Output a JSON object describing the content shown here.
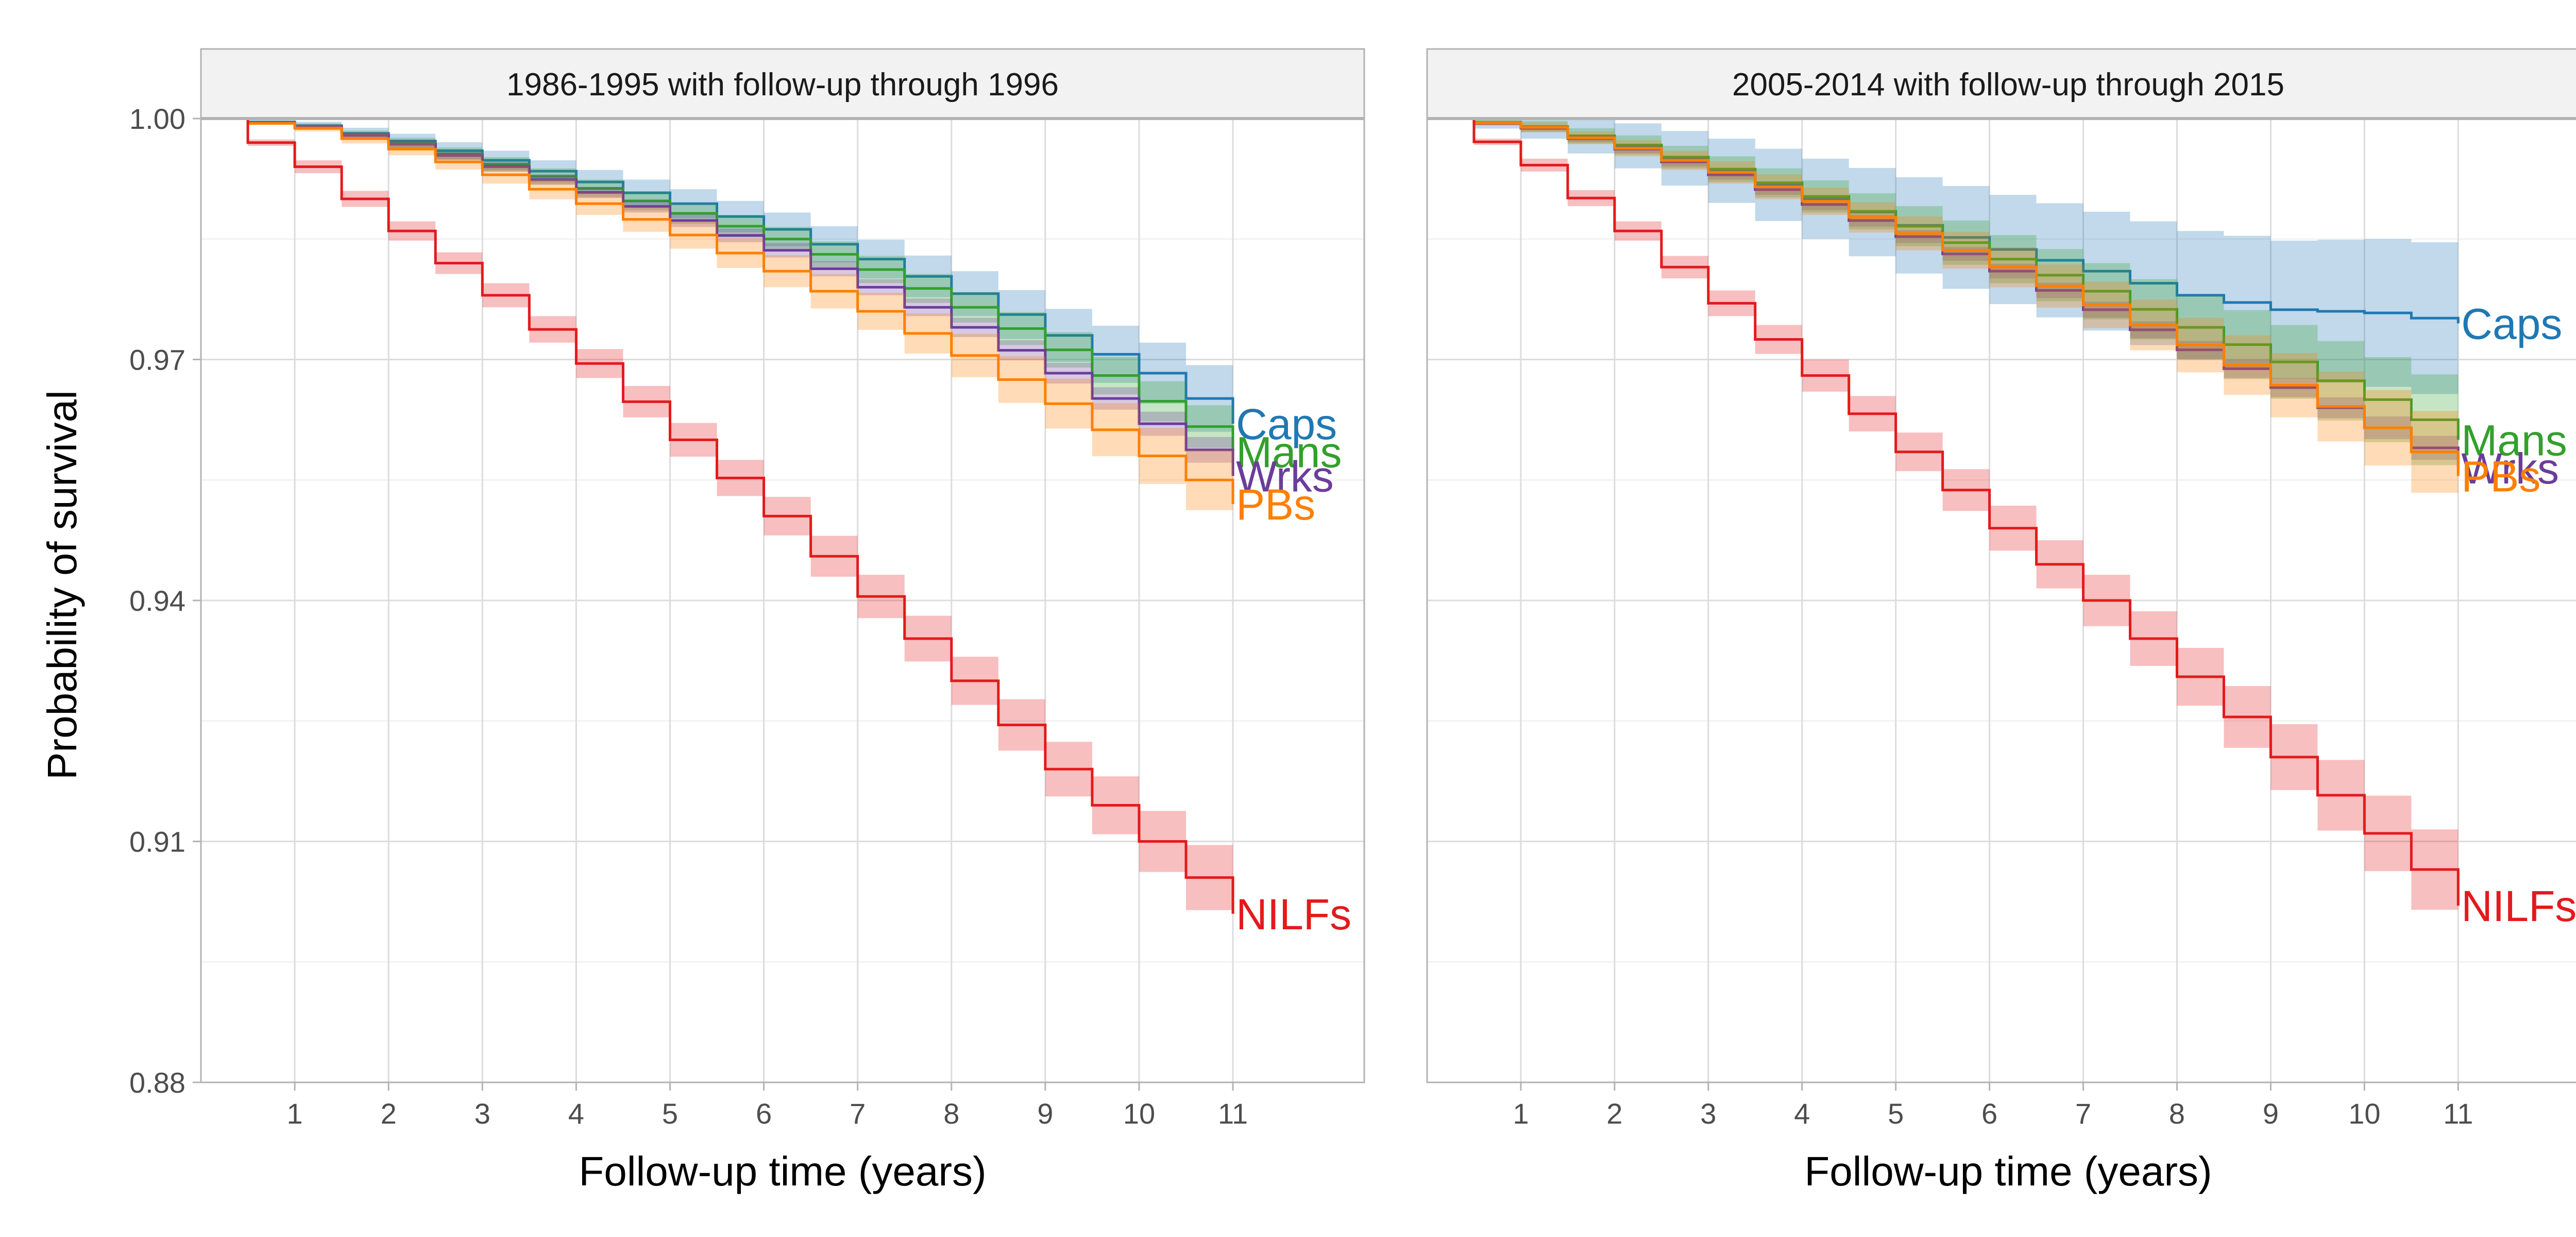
{
  "chart_data": {
    "type": "line",
    "ylabel": "Probability of survival",
    "y_ticks": [
      "0.88",
      "0.91",
      "0.94",
      "0.97",
      "1.00"
    ],
    "y_tick_values": [
      0.88,
      0.91,
      0.94,
      0.97,
      1.0
    ],
    "ylim": [
      0.88,
      1.0
    ],
    "x_ticks": [
      "1",
      "2",
      "3",
      "4",
      "5",
      "6",
      "7",
      "8",
      "9",
      "10",
      "11"
    ],
    "x_tick_values": [
      1,
      2,
      3,
      4,
      5,
      6,
      7,
      8,
      9,
      10,
      11
    ],
    "xlim": [
      0,
      12.4
    ],
    "grid": true,
    "legend": "direct labels at line ends",
    "step": 0.5,
    "panels": [
      {
        "strip_title": "1986-1995 with follow-up through 1996",
        "xlabel": "Follow-up time (years)",
        "series": [
          {
            "name": "Caps",
            "color": "#1f78b4",
            "x": [
              0,
              1,
              2,
              3,
              4,
              5,
              6,
              7,
              8,
              9,
              10,
              11
            ],
            "values": [
              1.0,
              0.9991,
              0.9972,
              0.9948,
              0.9921,
              0.9894,
              0.9862,
              0.9825,
              0.9782,
              0.973,
              0.9683,
              0.962
            ],
            "ci_halfwidth": [
              0,
              0.0005,
              0.0009,
              0.0012,
              0.0015,
              0.0018,
              0.0021,
              0.0024,
              0.0028,
              0.0033,
              0.0038,
              0.0045
            ]
          },
          {
            "name": "Mans",
            "color": "#33a02c",
            "x": [
              0,
              1,
              2,
              3,
              4,
              5,
              6,
              7,
              8,
              9,
              10,
              11
            ],
            "values": [
              1.0,
              0.999,
              0.9969,
              0.9943,
              0.9913,
              0.9882,
              0.985,
              0.9812,
              0.9765,
              0.9712,
              0.9648,
              0.9585
            ],
            "ci_halfwidth": [
              0,
              0.0004,
              0.0007,
              0.0009,
              0.0011,
              0.0013,
              0.0015,
              0.0017,
              0.0019,
              0.0022,
              0.0025,
              0.0028
            ]
          },
          {
            "name": "Wrks",
            "color": "#6a3d9a",
            "x": [
              0,
              1,
              2,
              3,
              4,
              5,
              6,
              7,
              8,
              9,
              10,
              11
            ],
            "values": [
              1.0,
              0.999,
              0.9968,
              0.994,
              0.9908,
              0.9873,
              0.9836,
              0.979,
              0.974,
              0.9683,
              0.962,
              0.9555
            ],
            "ci_halfwidth": [
              0,
              0.0003,
              0.0005,
              0.0006,
              0.0007,
              0.0008,
              0.0009,
              0.001,
              0.0012,
              0.0013,
              0.0015,
              0.0017
            ]
          },
          {
            "name": "PBs",
            "color": "#ff7f00",
            "x": [
              0,
              1,
              2,
              3,
              4,
              5,
              6,
              7,
              8,
              9,
              10,
              11
            ],
            "values": [
              1.0,
              0.9988,
              0.9962,
              0.993,
              0.9894,
              0.9855,
              0.981,
              0.976,
              0.9705,
              0.9645,
              0.958,
              0.952
            ],
            "ci_halfwidth": [
              0,
              0.0004,
              0.0008,
              0.0011,
              0.0014,
              0.0017,
              0.002,
              0.0023,
              0.0027,
              0.0031,
              0.0035,
              0.004
            ]
          },
          {
            "name": "NILFs",
            "color": "#e31a1c",
            "x": [
              0,
              1,
              2,
              3,
              4,
              5,
              6,
              7,
              8,
              9,
              10,
              11
            ],
            "values": [
              1.0,
              0.994,
              0.986,
              0.978,
              0.9695,
              0.96,
              0.9505,
              0.9405,
              0.93,
              0.919,
              0.91,
              0.901
            ],
            "ci_halfwidth": [
              0,
              0.0008,
              0.0012,
              0.0015,
              0.0018,
              0.0021,
              0.0024,
              0.0027,
              0.003,
              0.0034,
              0.0038,
              0.0043
            ]
          }
        ]
      },
      {
        "strip_title": "2005-2014 with follow-up through 2015",
        "xlabel": "Follow-up time (years)",
        "series": [
          {
            "name": "Caps",
            "color": "#1f78b4",
            "x": [
              0,
              1,
              2,
              3,
              4,
              5,
              6,
              7,
              8,
              9,
              10,
              11
            ],
            "values": [
              1.0,
              0.999,
              0.9966,
              0.9935,
              0.99,
              0.9867,
              0.9837,
              0.981,
              0.978,
              0.9762,
              0.9758,
              0.9745
            ],
            "ci_halfwidth": [
              0,
              0.0015,
              0.0028,
              0.004,
              0.005,
              0.006,
              0.0068,
              0.0074,
              0.008,
              0.0086,
              0.0092,
              0.0097
            ]
          },
          {
            "name": "Mans",
            "color": "#33a02c",
            "x": [
              0,
              1,
              2,
              3,
              4,
              5,
              6,
              7,
              8,
              9,
              10,
              11
            ],
            "values": [
              1.0,
              0.999,
              0.9967,
              0.9937,
              0.9903,
              0.9866,
              0.9825,
              0.9785,
              0.974,
              0.9697,
              0.965,
              0.96
            ],
            "ci_halfwidth": [
              0,
              0.0007,
              0.0012,
              0.0016,
              0.002,
              0.0025,
              0.003,
              0.0035,
              0.004,
              0.0046,
              0.0053,
              0.006
            ]
          },
          {
            "name": "Wrks",
            "color": "#6a3d9a",
            "x": [
              0,
              1,
              2,
              3,
              4,
              5,
              6,
              7,
              8,
              9,
              10,
              11
            ],
            "values": [
              1.0,
              0.9988,
              0.9962,
              0.993,
              0.9893,
              0.9853,
              0.981,
              0.9762,
              0.9712,
              0.9665,
              0.9615,
              0.9565
            ],
            "ci_halfwidth": [
              0,
              0.0003,
              0.0005,
              0.0006,
              0.0007,
              0.0008,
              0.0009,
              0.001,
              0.0011,
              0.0012,
              0.0014,
              0.0016
            ]
          },
          {
            "name": "PBs",
            "color": "#ff7f00",
            "x": [
              0,
              1,
              2,
              3,
              4,
              5,
              6,
              7,
              8,
              9,
              10,
              11
            ],
            "values": [
              1.0,
              0.9989,
              0.9963,
              0.9933,
              0.9897,
              0.9857,
              0.9815,
              0.9768,
              0.9718,
              0.9668,
              0.9615,
              0.9555
            ],
            "ci_halfwidth": [
              0,
              0.0006,
              0.001,
              0.0014,
              0.0017,
              0.0021,
              0.0025,
              0.0029,
              0.0034,
              0.004,
              0.0047,
              0.0055
            ]
          },
          {
            "name": "NILFs",
            "color": "#e31a1c",
            "x": [
              0,
              1,
              2,
              3,
              4,
              5,
              6,
              7,
              8,
              9,
              10,
              11
            ],
            "values": [
              1.0,
              0.9942,
              0.986,
              0.977,
              0.968,
              0.9585,
              0.949,
              0.94,
              0.9305,
              0.9205,
              0.911,
              0.902
            ],
            "ci_halfwidth": [
              0,
              0.0008,
              0.0012,
              0.0016,
              0.002,
              0.0024,
              0.0028,
              0.0032,
              0.0036,
              0.0041,
              0.0047,
              0.0053
            ]
          }
        ]
      }
    ]
  }
}
